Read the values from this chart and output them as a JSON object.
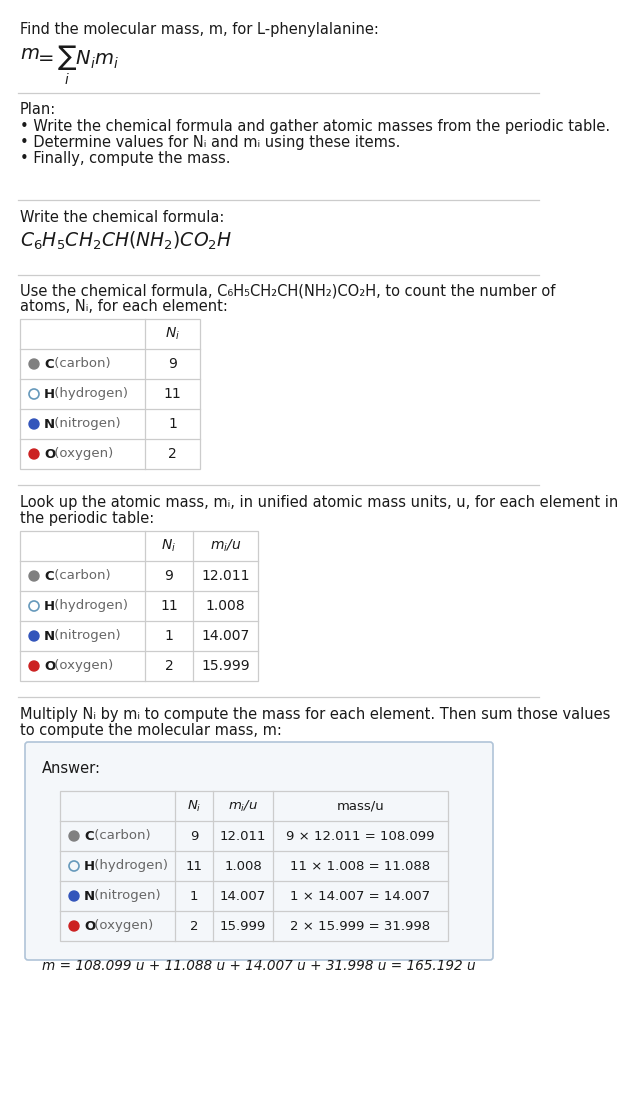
{
  "bg_color": "#ffffff",
  "text_color": "#1a1a1a",
  "gray_color": "#666666",
  "border_color": "#cccccc",
  "answer_bg": "#f4f7fa",
  "answer_border": "#b0c4d8",
  "title_line1": "Find the molecular mass, m, for L-phenylalanine:",
  "plan_header": "Plan:",
  "plan_bullets": [
    "• Write the chemical formula and gather atomic masses from the periodic table.",
    "• Determine values for Nᵢ and mᵢ using these items.",
    "• Finally, compute the mass."
  ],
  "formula_label": "Write the chemical formula:",
  "count_intro1": "Use the chemical formula, C₆H₅CH₂CH(NH₂)CO₂H, to count the number of",
  "count_intro2": "atoms, Nᵢ, for each element:",
  "lookup_intro1": "Look up the atomic mass, mᵢ, in unified atomic mass units, u, for each element in",
  "lookup_intro2": "the periodic table:",
  "multiply_intro1": "Multiply Nᵢ by mᵢ to compute the mass for each element. Then sum those values",
  "multiply_intro2": "to compute the molecular mass, m:",
  "answer_label": "Answer:",
  "elements": [
    "C (carbon)",
    "H (hydrogen)",
    "N (nitrogen)",
    "O (oxygen)"
  ],
  "dot_fill": [
    "#808080",
    "none",
    "#3355bb",
    "#cc2222"
  ],
  "dot_edge": [
    "#808080",
    "#6699bb",
    "#3355bb",
    "#cc2222"
  ],
  "N_i": [
    9,
    11,
    1,
    2
  ],
  "m_i": [
    "12.011",
    "1.008",
    "14.007",
    "15.999"
  ],
  "mass_exprs": [
    "9 × 12.011 = 108.099",
    "11 × 1.008 = 11.088",
    "1 × 14.007 = 14.007",
    "2 × 15.999 = 31.998"
  ],
  "final_eq": "m = 108.099 u + 11.088 u + 14.007 u + 31.998 u = 165.192 u"
}
